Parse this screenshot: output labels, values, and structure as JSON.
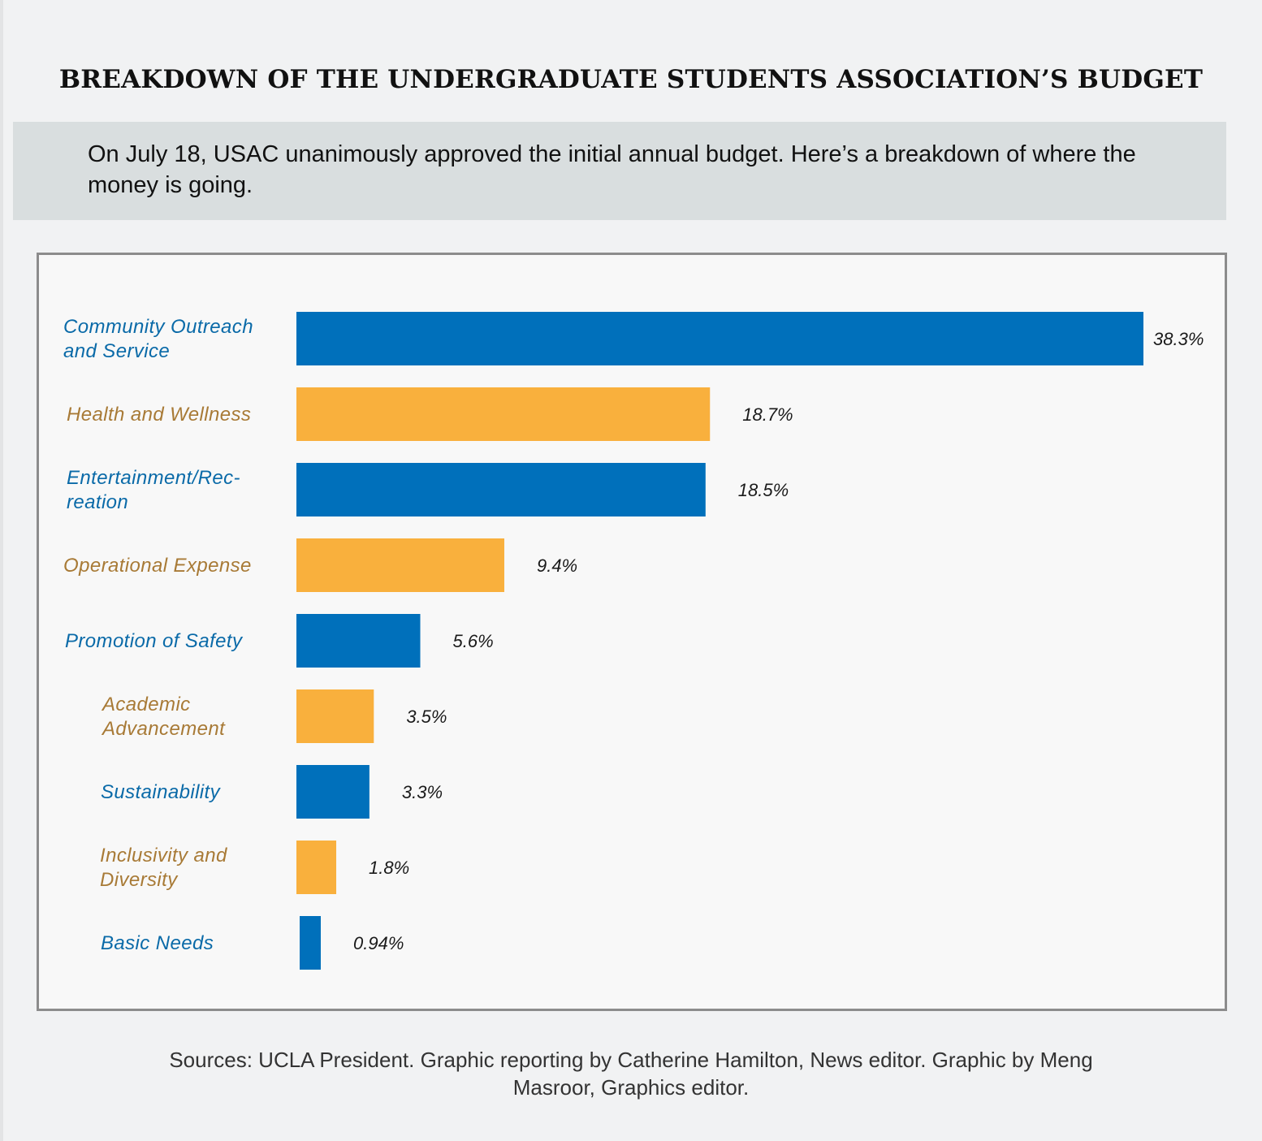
{
  "title": "BREAKDOWN OF THE UNDERGRADUATE STUDENTS ASSOCIATION’S BUDGET",
  "subtitle": "On July 18, USAC unanimously approved the initial annual budget. Here’s a breakdown of where the money is going.",
  "footer": {
    "line1": "Sources: UCLA President. Graphic reporting by Catherine Hamilton, News editor. Graphic by Meng",
    "line2": "Masroor, Graphics editor."
  },
  "colors": {
    "blue": "#0070bb",
    "orange": "#f9b03d",
    "blue_text": "#0a6aa8",
    "orange_text": "#a87a36"
  },
  "chart_data": {
    "type": "bar",
    "orientation": "horizontal",
    "unit": "%",
    "categories": [
      {
        "lines": [
          "Community Outreach",
          "and Service"
        ],
        "value": 38.3,
        "label": "38.3%",
        "color": "blue"
      },
      {
        "lines": [
          "Health and Wellness"
        ],
        "value": 18.7,
        "label": "18.7%",
        "color": "orange"
      },
      {
        "lines": [
          "Entertainment/Rec-",
          "reation"
        ],
        "value": 18.5,
        "label": "18.5%",
        "color": "blue"
      },
      {
        "lines": [
          "Operational Expense"
        ],
        "value": 9.4,
        "label": "9.4%",
        "color": "orange"
      },
      {
        "lines": [
          "Promotion of Safety"
        ],
        "value": 5.6,
        "label": "5.6%",
        "color": "blue"
      },
      {
        "lines": [
          "Academic",
          "Advancement"
        ],
        "value": 3.5,
        "label": "3.5%",
        "color": "orange"
      },
      {
        "lines": [
          "Sustainability"
        ],
        "value": 3.3,
        "label": "3.3%",
        "color": "blue"
      },
      {
        "lines": [
          "Inclusivity and",
          "Diversity"
        ],
        "value": 1.8,
        "label": "1.8%",
        "color": "orange"
      },
      {
        "lines": [
          "Basic Needs"
        ],
        "value": 0.94,
        "label": "0.94%",
        "color": "blue"
      }
    ],
    "xlim": [
      0,
      38.3
    ],
    "gridlines": false,
    "legend": "none"
  }
}
